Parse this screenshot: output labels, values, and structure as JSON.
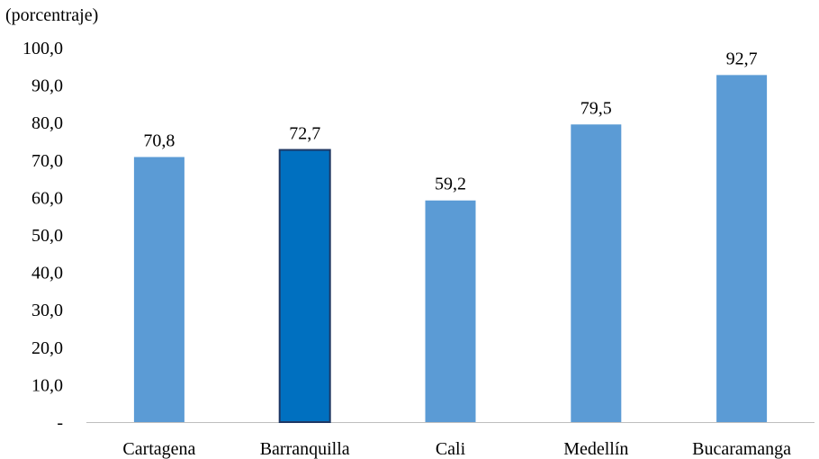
{
  "chart_data": {
    "type": "bar",
    "unit_label": "(porcentraje)",
    "categories": [
      "Cartagena",
      "Barranquilla",
      "Cali",
      "Medellín",
      "Bucaramanga"
    ],
    "values": [
      70.8,
      72.7,
      59.2,
      79.5,
      92.7
    ],
    "value_labels": [
      "70,8",
      "72,7",
      "59,2",
      "79,5",
      "92,7"
    ],
    "highlighted_category": "Barranquilla",
    "ylim": [
      0,
      100
    ],
    "y_ticks": [
      {
        "value": 0,
        "label": "-"
      },
      {
        "value": 10,
        "label": "10,0"
      },
      {
        "value": 20,
        "label": "20,0"
      },
      {
        "value": 30,
        "label": "30,0"
      },
      {
        "value": 40,
        "label": "40,0"
      },
      {
        "value": 50,
        "label": "50,0"
      },
      {
        "value": 60,
        "label": "60,0"
      },
      {
        "value": 70,
        "label": "70,0"
      },
      {
        "value": 80,
        "label": "80,0"
      },
      {
        "value": 90,
        "label": "90,0"
      },
      {
        "value": 100,
        "label": "100,0"
      }
    ],
    "grid": false,
    "colors": {
      "bar": "#5b9bd5",
      "highlight_bar": "#0070c0",
      "highlight_border": "#1f3864",
      "axis": "#bfbfbf"
    }
  }
}
